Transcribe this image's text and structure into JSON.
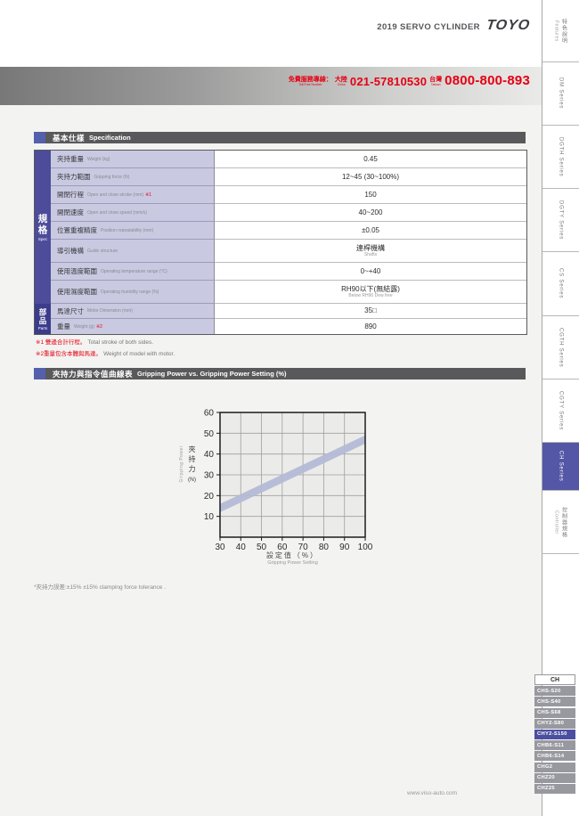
{
  "colors": {
    "accent_red": "#e60012",
    "group_spec_bg": "#4c4c9b",
    "group_parts_bg": "#3c3c8c",
    "active_tab_bg": "#5457a5",
    "menu_item_bg": "#98989f",
    "menu_active_bg": "#4c4fa0",
    "section_bar_bg": "#59595b",
    "section_accent_bg": "#5560ac",
    "label_cell_bg": "#c9c9e1",
    "band_color": "#b5bad6"
  },
  "header": {
    "title": "2019 SERVO CYLINDER",
    "logo": "TOYO",
    "hotline_label": "免費服務專線：",
    "hotline_sublabel": "Toll-Free Number",
    "china_label": "大陸",
    "china_sublabel": "China",
    "china_number": "021-57810530",
    "taiwan_label": "台灣",
    "taiwan_sublabel": "Taiwan",
    "taiwan_number": "0800-800-893"
  },
  "spec_section": {
    "title_zh": "基本仕樣",
    "title_en": "Specification",
    "groups": [
      {
        "zh": "規格",
        "en": "Spec"
      },
      {
        "zh": "部品",
        "en": "Parts"
      }
    ],
    "rows": [
      {
        "label_zh": "夾持重量",
        "label_en": "Weight (kg)",
        "value": "0.45",
        "group": 0
      },
      {
        "label_zh": "夾持力範圍",
        "label_en": "Gripping force (N)",
        "value": "12~45 (30~100%)",
        "group": 0
      },
      {
        "label_zh": "開閉行程",
        "label_en": "Open and close stroke (mm)",
        "mark": "※1",
        "value": "150",
        "group": 0
      },
      {
        "label_zh": "開閉速度",
        "label_en": "Open and close speed (mm/s)",
        "value": "40~200",
        "group": 0
      },
      {
        "label_zh": "位置重複精度",
        "label_en": "Position repeatability (mm)",
        "value": "±0.05",
        "group": 0
      },
      {
        "label_zh": "導引機構",
        "label_en": "Guide structure",
        "value": "連桿機構",
        "value_sub": "Shafts",
        "group": 0
      },
      {
        "label_zh": "使用溫度範圍",
        "label_en": "Operating temperature range (°C)",
        "value": "0~+40",
        "group": 0
      },
      {
        "label_zh": "使用濕度範圍",
        "label_en": "Operating humidity range (%)",
        "value": "RH90以下(無結露)",
        "value_sub": "Below RH90 Dew free",
        "group": 0
      },
      {
        "label_zh": "馬達尺寸",
        "label_en": "Motor Dimension (mm)",
        "value": "35□",
        "group": 1
      },
      {
        "label_zh": "重量",
        "label_en": "Weight (g)",
        "mark": "※2",
        "value": "890",
        "group": 1
      }
    ],
    "footnotes": [
      {
        "zh": "※1 雙邊合計行程。",
        "en": "Total stroke of both sides."
      },
      {
        "zh": "※2重量包含本體與馬達。",
        "en": "Weight of model with motor."
      }
    ]
  },
  "chart_section": {
    "footnote": "*夾持力誤差:±15%  ±15% clamping force tolerance ."
  },
  "chart_data": {
    "type": "area",
    "title_zh": "夾持力與指令值曲線表",
    "title_en": "Gripping Power vs. Gripping Power Setting (%)",
    "x": [
      30,
      100
    ],
    "series": [
      {
        "name": "gripping-power-lower-bound",
        "values": [
          12,
          45
        ]
      },
      {
        "name": "gripping-power-upper-bound",
        "values": [
          16,
          49
        ]
      }
    ],
    "xlabel_zh": "設定值（%）",
    "xlabel_en": "Gripping Power Setting",
    "ylabel_zh": "夾持力",
    "ylabel_unit": "(N)",
    "ylabel_en": "Gripping Power",
    "xlim": [
      30,
      100
    ],
    "ylim": [
      0,
      60
    ],
    "xticks": [
      30,
      40,
      50,
      60,
      70,
      80,
      90,
      100
    ],
    "yticks": [
      10,
      20,
      30,
      40,
      50,
      60
    ],
    "grid": true,
    "legend": false
  },
  "sidebar": {
    "tabs": [
      {
        "zh": "特色說明",
        "en": "Features"
      },
      {
        "en": "DM Series"
      },
      {
        "en": "DGTH Series"
      },
      {
        "en": "DGTY Series"
      },
      {
        "en": "CS Series"
      },
      {
        "en": "CGTH Series"
      },
      {
        "en": "CGTY Series"
      },
      {
        "en": "CH Series",
        "active": true
      },
      {
        "zh": "控制器規格",
        "en": "Controller"
      }
    ]
  },
  "model_menu": {
    "header": "CH",
    "items": [
      {
        "label": "CHS-S20"
      },
      {
        "label": "CHS-S40"
      },
      {
        "label": "CHS-S68"
      },
      {
        "label": "CHY2-S80"
      },
      {
        "label": "CHY2-S150",
        "active": true
      },
      {
        "label": "CHB6-S11"
      },
      {
        "label": "CHB6-S14"
      },
      {
        "label": "CHG2"
      },
      {
        "label": "CHZ20"
      },
      {
        "label": "CHZ25"
      }
    ]
  },
  "footer": {
    "website": "www.viso-auto.com"
  }
}
